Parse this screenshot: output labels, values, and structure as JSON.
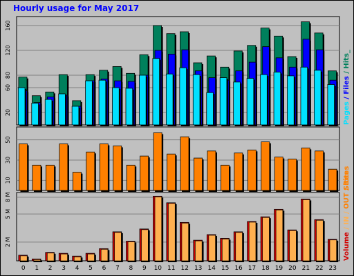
{
  "window": {
    "title": "Hourly usage for May 2017"
  },
  "colors": {
    "background": "#c0c0c0",
    "panel": "#c0c0c0",
    "grid": "#808080",
    "hits": "#00805c",
    "files": "#0000ff",
    "pages": "#00e0ff",
    "sites": "#ff8000",
    "volume_in": "#ffb050",
    "volume_out": "#d00000",
    "title": "#0000ff"
  },
  "chart_data": [
    {
      "type": "bar",
      "panel": "hits",
      "categories": [
        "0",
        "1",
        "2",
        "3",
        "4",
        "5",
        "6",
        "7",
        "8",
        "9",
        "10",
        "11",
        "12",
        "13",
        "14",
        "15",
        "16",
        "17",
        "18",
        "19",
        "20",
        "21",
        "22",
        "23"
      ],
      "series": [
        {
          "name": "Hits",
          "values": [
            77,
            47,
            53,
            81,
            39,
            81,
            88,
            94,
            83,
            113,
            160,
            147,
            150,
            100,
            111,
            93,
            119,
            128,
            156,
            143,
            110,
            166,
            148,
            87
          ]
        },
        {
          "name": "Files",
          "values": [
            55,
            36,
            45,
            48,
            30,
            71,
            74,
            71,
            70,
            80,
            120,
            114,
            121,
            87,
            76,
            72,
            87,
            101,
            126,
            108,
            93,
            138,
            121,
            72
          ]
        },
        {
          "name": "Pages",
          "values": [
            60,
            35,
            41,
            50,
            30,
            71,
            72,
            60,
            59,
            80,
            107,
            82,
            92,
            81,
            52,
            76,
            69,
            75,
            81,
            85,
            79,
            93,
            88,
            65
          ]
        }
      ],
      "ylim": [
        0,
        170
      ],
      "yticks": [
        20,
        60,
        80,
        120,
        160
      ],
      "right_label": [
        {
          "text": "Pages",
          "color": "#00e0ff"
        },
        {
          "text": " / ",
          "color": "#0000ff"
        },
        {
          "text": "Files",
          "color": "#0000ff"
        },
        {
          "text": " / ",
          "color": "#00805c"
        },
        {
          "text": "Hits",
          "color": "#00805c"
        },
        {
          "text": "_",
          "color": "#00805c"
        }
      ]
    },
    {
      "type": "bar",
      "panel": "sites",
      "categories": [
        "0",
        "1",
        "2",
        "3",
        "4",
        "5",
        "6",
        "7",
        "8",
        "9",
        "10",
        "11",
        "12",
        "13",
        "14",
        "15",
        "16",
        "17",
        "18",
        "19",
        "20",
        "21",
        "22",
        "23"
      ],
      "series": [
        {
          "name": "Sites",
          "values": [
            46,
            25,
            25,
            46,
            18,
            38,
            46,
            44,
            25,
            34,
            57,
            36,
            53,
            32,
            39,
            25,
            37,
            40,
            48,
            33,
            31,
            42,
            39,
            21
          ]
        }
      ],
      "ylim": [
        0,
        60
      ],
      "yticks": [
        10,
        30,
        50
      ],
      "right_label": [
        {
          "text": "Sites",
          "color": "#ff8000"
        }
      ]
    },
    {
      "type": "bar",
      "panel": "volume",
      "categories": [
        "0",
        "1",
        "2",
        "3",
        "4",
        "5",
        "6",
        "7",
        "8",
        "9",
        "10",
        "11",
        "12",
        "13",
        "14",
        "15",
        "16",
        "17",
        "18",
        "19",
        "20",
        "21",
        "22",
        "23"
      ],
      "series": [
        {
          "name": "Volume",
          "values": [
            0.6,
            0.2,
            0.9,
            0.8,
            0.5,
            0.8,
            1.3,
            3.1,
            2.1,
            3.4,
            6.9,
            6.2,
            4.1,
            2.2,
            2.8,
            2.4,
            3.1,
            4.2,
            4.7,
            5.5,
            3.3,
            6.6,
            4.4,
            2.3
          ]
        }
      ],
      "ylim": [
        0,
        7
      ],
      "yticks": [
        2,
        5,
        8
      ],
      "ytick_labels": [
        "2 M",
        "5 M",
        "8 M"
      ],
      "right_label": [
        {
          "text": "Volume",
          "color": "#d00000"
        },
        {
          "text": " / ",
          "color": "#ffb050"
        },
        {
          "text": "IN",
          "color": "#ffb050"
        },
        {
          "text": " / ",
          "color": "#ffb050"
        },
        {
          "text": "OUT",
          "color": "#ff8000"
        },
        {
          "text": " / ",
          "color": "#ff8000"
        },
        {
          "text": "Sites",
          "color": "#ff8000"
        }
      ]
    }
  ]
}
